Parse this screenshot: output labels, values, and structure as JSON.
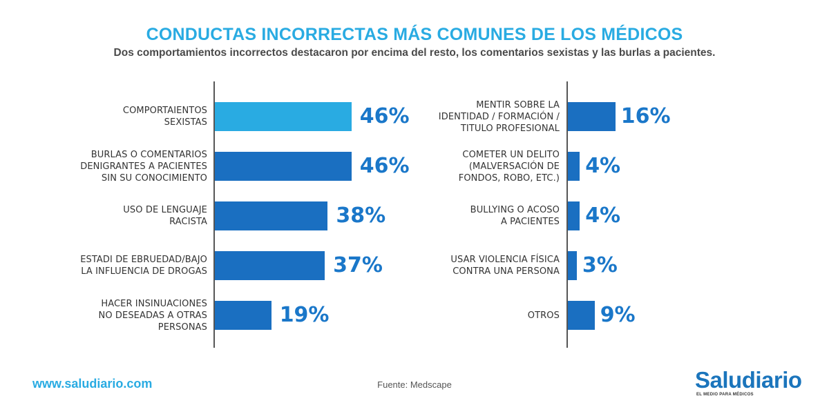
{
  "header": {
    "title": "CONDUCTAS INCORRECTAS MÁS COMUNES DE LOS MÉDICOS",
    "subtitle": "Dos comportamientos incorrectos destacaron por encima del resto,  los comentarios sexistas y las burlas a pacientes."
  },
  "footer": {
    "url": "www.saludiario.com",
    "source": "Fuente:  Medscape",
    "logo": "Saludiario",
    "logo_tagline": "EL MEDIO PARA MÉDICOS"
  },
  "colors": {
    "highlight": "#29abe2",
    "bar": "#1a6fc1",
    "value_text": "#1a77c9"
  },
  "chart_data": [
    {
      "type": "bar",
      "orientation": "horizontal",
      "categories": [
        "COMPORTAIENTOS\nSEXISTAS",
        "BURLAS O COMENTARIOS\nDENIGRANTES A PACIENTES\nSIN SU CONOCIMIENTO",
        "USO DE LENGUAJE\nRACISTA",
        "ESTADI DE EBRUEDAD/BAJO\nLA INFLUENCIA DE DROGAS",
        "HACER INSINUACIONES\nNO DESEADAS A OTRAS\nPERSONAS"
      ],
      "values": [
        46,
        46,
        38,
        37,
        19
      ],
      "value_labels": [
        "46%",
        "46%",
        "38%",
        "37%",
        "19%"
      ],
      "highlight_index": 0
    },
    {
      "type": "bar",
      "orientation": "horizontal",
      "categories": [
        "MENTIR SOBRE LA\nIDENTIDAD / FORMACIÓN /\nTITULO PROFESIONAL",
        "COMETER UN DELITO\n(MALVERSACIÓN DE\nFONDOS, ROBO, ETC.)",
        "BULLYING O ACOSO\nA PACIENTES",
        "USAR VIOLENCIA FÍSICA\nCONTRA UNA PERSONA",
        "OTROS"
      ],
      "values": [
        16,
        4,
        4,
        3,
        9
      ],
      "value_labels": [
        "16%",
        "4%",
        "4%",
        "3%",
        "9%"
      ],
      "highlight_index": -1
    }
  ]
}
